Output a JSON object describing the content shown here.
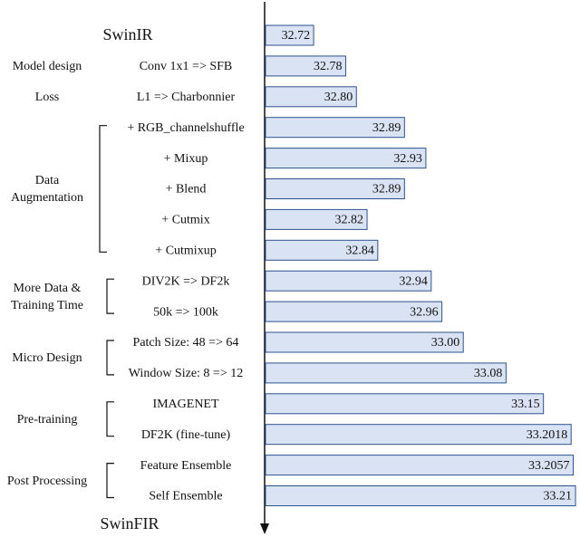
{
  "chart_data": {
    "type": "bar",
    "orientation": "horizontal",
    "categories": [
      "SwinIR",
      "Conv 1x1 => SFB",
      "L1 => Charbonnier",
      "+ RGB_channelshuffle",
      "+ Mixup",
      "+ Blend",
      "+ Cutmix",
      "+ Cutmixup",
      "DIV2K => DF2k",
      "50k => 100k",
      "Patch Size: 48 => 64",
      "Window Size: 8 => 12",
      "IMAGENET",
      "DF2K (fine-tune)",
      "Feature Ensemble",
      "Self Ensemble"
    ],
    "values": [
      32.72,
      32.78,
      32.8,
      32.89,
      32.93,
      32.89,
      32.82,
      32.84,
      32.94,
      32.96,
      33.0,
      33.08,
      33.15,
      33.2018,
      33.2057,
      33.21
    ],
    "value_labels": [
      "32.72",
      "32.78",
      "32.80",
      "32.89",
      "32.93",
      "32.89",
      "32.82",
      "32.84",
      "32.94",
      "32.96",
      "33.00",
      "33.08",
      "33.15",
      "33.2018",
      "33.2057",
      "33.21"
    ],
    "color": "#dae3f3",
    "edge_color": "#2f528f",
    "xlim": [
      32.63,
      33.215
    ],
    "end_label": "SwinFIR",
    "groups": [
      {
        "lines": [
          "Model design"
        ],
        "first": 1,
        "last": 1
      },
      {
        "lines": [
          "Loss"
        ],
        "first": 2,
        "last": 2
      },
      {
        "lines": [
          "Data",
          "Augmentation"
        ],
        "first": 3,
        "last": 7
      },
      {
        "lines": [
          "More Data &",
          "Training Time"
        ],
        "first": 8,
        "last": 9
      },
      {
        "lines": [
          "Micro Design"
        ],
        "first": 10,
        "last": 11
      },
      {
        "lines": [
          "Pre-training"
        ],
        "first": 12,
        "last": 13
      },
      {
        "lines": [
          "Post Processing"
        ],
        "first": 14,
        "last": 15
      }
    ]
  }
}
